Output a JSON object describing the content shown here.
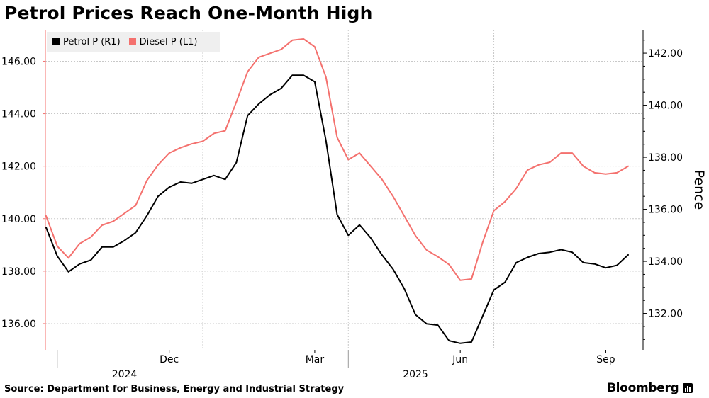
{
  "title": "Petrol Prices Reach One-Month High",
  "source": "Source: Department for Business, Energy and Industrial Strategy",
  "brand": "Bloomberg",
  "colors": {
    "petrol": "#000000",
    "diesel": "#f4716e",
    "grid": "#c8c8c8",
    "legend_bg": "#efefef"
  },
  "chart_data": {
    "type": "line",
    "title": "Petrol Prices Reach One-Month High",
    "left_axis": {
      "ylim": [
        135,
        147.2
      ],
      "ticks": [
        136,
        138,
        140,
        142,
        144,
        146
      ],
      "tick_labels": [
        "136.00",
        "138.00",
        "140.00",
        "142.00",
        "144.00",
        "146.00"
      ]
    },
    "right_axis": {
      "ylim": [
        130.6,
        142.9
      ],
      "ticks": [
        132,
        134,
        136,
        138,
        140,
        142
      ],
      "tick_labels": [
        "132.00",
        "134.00",
        "136.00",
        "138.00",
        "140.00",
        "142.00"
      ],
      "label": "Pence"
    },
    "x_ticks": [
      {
        "index": 11,
        "label": "Dec"
      },
      {
        "index": 24,
        "label": "Mar"
      },
      {
        "index": 37,
        "label": "Jun"
      },
      {
        "index": 50,
        "label": "Sep"
      }
    ],
    "year_labels": [
      {
        "index": 7,
        "label": "2024"
      },
      {
        "index": 33,
        "label": "2025"
      }
    ],
    "year_dividers": [
      1,
      27
    ],
    "grid_lines_x": [
      14,
      27,
      40
    ],
    "series": [
      {
        "name": "Petrol P (R1)",
        "axis": "right",
        "color": "#000000",
        "values": [
          135.3,
          134.2,
          133.6,
          133.9,
          134.05,
          134.55,
          134.55,
          134.8,
          135.1,
          135.75,
          136.5,
          136.85,
          137.05,
          137.0,
          137.15,
          137.3,
          137.15,
          137.8,
          139.6,
          140.05,
          140.4,
          140.65,
          141.15,
          141.15,
          140.9,
          138.65,
          135.8,
          135.0,
          135.4,
          134.9,
          134.25,
          133.7,
          132.95,
          131.95,
          131.6,
          131.55,
          130.95,
          130.85,
          130.9,
          131.9,
          132.9,
          133.2,
          133.95,
          134.15,
          134.3,
          134.35,
          134.45,
          134.35,
          133.95,
          133.9,
          133.75,
          133.85,
          134.25
        ]
      },
      {
        "name": "Diesel P (L1)",
        "axis": "left",
        "color": "#f4716e",
        "values": [
          140.1,
          138.95,
          138.5,
          139.05,
          139.3,
          139.75,
          139.9,
          140.2,
          140.5,
          141.45,
          142.05,
          142.5,
          142.7,
          142.85,
          142.95,
          143.25,
          143.35,
          144.45,
          145.6,
          146.15,
          146.3,
          146.45,
          146.8,
          146.85,
          146.55,
          145.4,
          143.1,
          142.25,
          142.5,
          142.0,
          141.5,
          140.85,
          140.1,
          139.35,
          138.8,
          138.55,
          138.25,
          137.65,
          137.7,
          139.1,
          140.3,
          140.65,
          141.15,
          141.85,
          142.05,
          142.15,
          142.5,
          142.5,
          142.0,
          141.75,
          141.7,
          141.75,
          142.0
        ]
      }
    ]
  }
}
